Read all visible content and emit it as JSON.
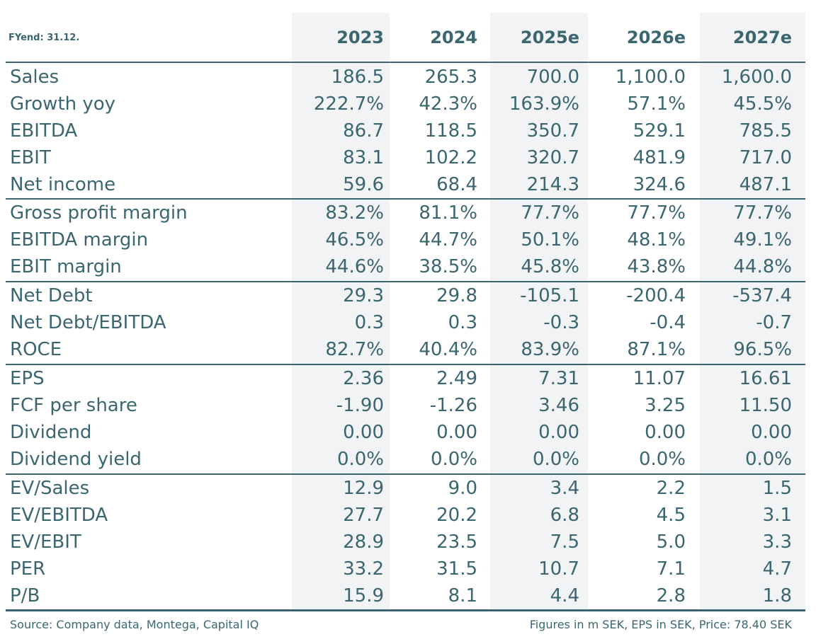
{
  "header": {
    "fy_label": "FYend: 31.12.",
    "years": [
      "2023",
      "2024",
      "2025e",
      "2026e",
      "2027e"
    ]
  },
  "groups": [
    {
      "rows": [
        {
          "label": "Sales",
          "values": [
            "186.5",
            "265.3",
            "700.0",
            "1,100.0",
            "1,600.0"
          ]
        },
        {
          "label": "Growth yoy",
          "values": [
            "222.7%",
            "42.3%",
            "163.9%",
            "57.1%",
            "45.5%"
          ]
        },
        {
          "label": "EBITDA",
          "values": [
            "86.7",
            "118.5",
            "350.7",
            "529.1",
            "785.5"
          ]
        },
        {
          "label": "EBIT",
          "values": [
            "83.1",
            "102.2",
            "320.7",
            "481.9",
            "717.0"
          ]
        },
        {
          "label": "Net income",
          "values": [
            "59.6",
            "68.4",
            "214.3",
            "324.6",
            "487.1"
          ]
        }
      ]
    },
    {
      "rows": [
        {
          "label": "Gross profit margin",
          "values": [
            "83.2%",
            "81.1%",
            "77.7%",
            "77.7%",
            "77.7%"
          ]
        },
        {
          "label": "EBITDA margin",
          "values": [
            "46.5%",
            "44.7%",
            "50.1%",
            "48.1%",
            "49.1%"
          ]
        },
        {
          "label": "EBIT margin",
          "values": [
            "44.6%",
            "38.5%",
            "45.8%",
            "43.8%",
            "44.8%"
          ]
        }
      ]
    },
    {
      "rows": [
        {
          "label": "Net Debt",
          "values": [
            "29.3",
            "29.8",
            "-105.1",
            "-200.4",
            "-537.4"
          ]
        },
        {
          "label": "Net Debt/EBITDA",
          "values": [
            "0.3",
            "0.3",
            "-0.3",
            "-0.4",
            "-0.7"
          ]
        },
        {
          "label": "ROCE",
          "values": [
            "82.7%",
            "40.4%",
            "83.9%",
            "87.1%",
            "96.5%"
          ]
        }
      ]
    },
    {
      "rows": [
        {
          "label": "EPS",
          "values": [
            "2.36",
            "2.49",
            "7.31",
            "11.07",
            "16.61"
          ]
        },
        {
          "label": "FCF per share",
          "values": [
            "-1.90",
            "-1.26",
            "3.46",
            "3.25",
            "11.50"
          ]
        },
        {
          "label": "Dividend",
          "values": [
            "0.00",
            "0.00",
            "0.00",
            "0.00",
            "0.00"
          ]
        },
        {
          "label": "Dividend yield",
          "values": [
            "0.0%",
            "0.0%",
            "0.0%",
            "0.0%",
            "0.0%"
          ]
        }
      ]
    },
    {
      "rows": [
        {
          "label": "EV/Sales",
          "values": [
            "12.9",
            "9.0",
            "3.4",
            "2.2",
            "1.5"
          ]
        },
        {
          "label": "EV/EBITDA",
          "values": [
            "27.7",
            "20.2",
            "6.8",
            "4.5",
            "3.1"
          ]
        },
        {
          "label": "EV/EBIT",
          "values": [
            "28.9",
            "23.5",
            "7.5",
            "5.0",
            "3.3"
          ]
        },
        {
          "label": "PER",
          "values": [
            "33.2",
            "31.5",
            "10.7",
            "7.1",
            "4.7"
          ]
        },
        {
          "label": "P/B",
          "values": [
            "15.9",
            "8.1",
            "4.4",
            "2.8",
            "1.8"
          ]
        }
      ]
    }
  ],
  "footer": {
    "source": "Source: Company data, Montega, Capital IQ",
    "note": "Figures in m SEK, EPS in SEK, Price: 78.40 SEK"
  },
  "colors": {
    "text": "#3b6670",
    "shade": "#f1f3f4",
    "rule": "#3b6670"
  }
}
